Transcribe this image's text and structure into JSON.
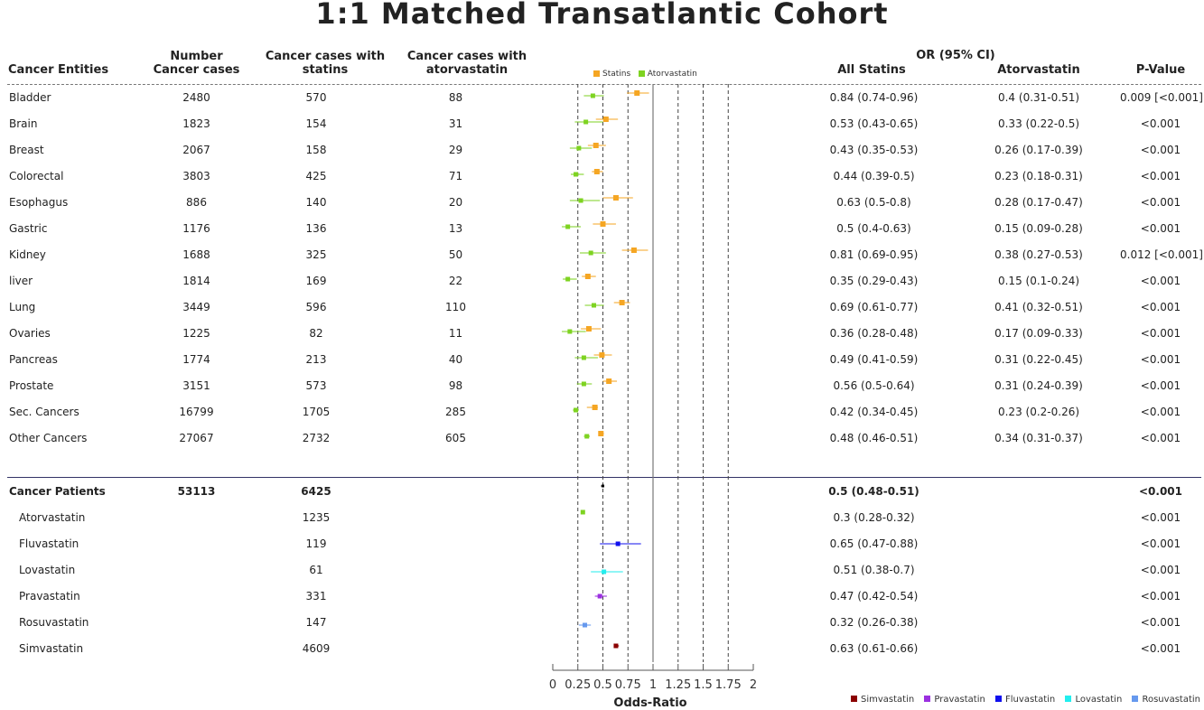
{
  "title": "1:1 Matched Transatlantic Cohort",
  "headers": {
    "entities": "Cancer Entities",
    "number_l1": "Number",
    "number_l2": "Cancer cases",
    "statins_l1": "Cancer cases with",
    "statins_l2": "statins",
    "atorva_l1": "Cancer cases with",
    "atorva_l2": "atorvastatin",
    "or_group": "OR (95% CI)",
    "all_statins": "All Statins",
    "atorvastatin": "Atorvastatin",
    "pvalue": "P-Value"
  },
  "legend_top": [
    "Statins",
    "Atorvastatin"
  ],
  "legend_bottom": [
    "Simvastatin",
    "Pravastatin",
    "Fluvastatin",
    "Lovastatin",
    "Rosuvastatin"
  ],
  "colors": {
    "statins": "#f5a623",
    "atorvastatin": "#7ed321",
    "simvastatin": "#8b0000",
    "pravastatin": "#9b30e0",
    "fluvastatin": "#1010ee",
    "lovastatin": "#22eeee",
    "rosuvastatin": "#6699ee"
  },
  "rows": [
    {
      "name": "Bladder",
      "number": "2480",
      "statins": "570",
      "atorva": "88",
      "or_all": "0.84 (0.74-0.96)",
      "or_ator": "0.4 (0.31-0.51)",
      "p": "0.009 [<0.001]"
    },
    {
      "name": "Brain",
      "number": "1823",
      "statins": "154",
      "atorva": "31",
      "or_all": "0.53 (0.43-0.65)",
      "or_ator": "0.33 (0.22-0.5)",
      "p": "<0.001"
    },
    {
      "name": "Breast",
      "number": "2067",
      "statins": "158",
      "atorva": "29",
      "or_all": "0.43 (0.35-0.53)",
      "or_ator": "0.26 (0.17-0.39)",
      "p": "<0.001"
    },
    {
      "name": "Colorectal",
      "number": "3803",
      "statins": "425",
      "atorva": "71",
      "or_all": "0.44 (0.39-0.5)",
      "or_ator": "0.23 (0.18-0.31)",
      "p": "<0.001"
    },
    {
      "name": "Esophagus",
      "number": "886",
      "statins": "140",
      "atorva": "20",
      "or_all": "0.63 (0.5-0.8)",
      "or_ator": "0.28 (0.17-0.47)",
      "p": "<0.001"
    },
    {
      "name": "Gastric",
      "number": "1176",
      "statins": "136",
      "atorva": "13",
      "or_all": "0.5 (0.4-0.63)",
      "or_ator": "0.15 (0.09-0.28)",
      "p": "<0.001"
    },
    {
      "name": "Kidney",
      "number": "1688",
      "statins": "325",
      "atorva": "50",
      "or_all": "0.81 (0.69-0.95)",
      "or_ator": "0.38 (0.27-0.53)",
      "p": "0.012 [<0.001]"
    },
    {
      "name": "liver",
      "number": "1814",
      "statins": "169",
      "atorva": "22",
      "or_all": "0.35 (0.29-0.43)",
      "or_ator": "0.15 (0.1-0.24)",
      "p": "<0.001"
    },
    {
      "name": "Lung",
      "number": "3449",
      "statins": "596",
      "atorva": "110",
      "or_all": "0.69 (0.61-0.77)",
      "or_ator": "0.41 (0.32-0.51)",
      "p": "<0.001"
    },
    {
      "name": "Ovaries",
      "number": "1225",
      "statins": "82",
      "atorva": "11",
      "or_all": "0.36 (0.28-0.48)",
      "or_ator": "0.17 (0.09-0.33)",
      "p": "<0.001"
    },
    {
      "name": "Pancreas",
      "number": "1774",
      "statins": "213",
      "atorva": "40",
      "or_all": "0.49 (0.41-0.59)",
      "or_ator": "0.31 (0.22-0.45)",
      "p": "<0.001"
    },
    {
      "name": "Prostate",
      "number": "3151",
      "statins": "573",
      "atorva": "98",
      "or_all": "0.56 (0.5-0.64)",
      "or_ator": "0.31 (0.24-0.39)",
      "p": "<0.001"
    },
    {
      "name": "Sec. Cancers",
      "number": "16799",
      "statins": "1705",
      "atorva": "285",
      "or_all": "0.42 (0.34-0.45)",
      "or_ator": "0.23 (0.2-0.26)",
      "p": "<0.001"
    },
    {
      "name": "Other Cancers",
      "number": "27067",
      "statins": "2732",
      "atorva": "605",
      "or_all": "0.48 (0.46-0.51)",
      "or_ator": "0.34 (0.31-0.37)",
      "p": "<0.001"
    }
  ],
  "summary": {
    "name": "Cancer Patients",
    "number": "53113",
    "statins": "6425",
    "or_all": "0.5 (0.48-0.51)",
    "p": "<0.001"
  },
  "subrows": [
    {
      "name": "Atorvastatin",
      "statins": "1235",
      "or_all": "0.3 (0.28-0.32)",
      "p": "<0.001"
    },
    {
      "name": "Fluvastatin",
      "statins": "119",
      "or_all": "0.65 (0.47-0.88)",
      "p": "<0.001"
    },
    {
      "name": "Lovastatin",
      "statins": "61",
      "or_all": "0.51 (0.38-0.7)",
      "p": "<0.001"
    },
    {
      "name": "Pravastatin",
      "statins": "331",
      "or_all": "0.47 (0.42-0.54)",
      "p": "<0.001"
    },
    {
      "name": "Rosuvastatin",
      "statins": "147",
      "or_all": "0.32 (0.26-0.38)",
      "p": "<0.001"
    },
    {
      "name": "Simvastatin",
      "statins": "4609",
      "or_all": "0.63 (0.61-0.66)",
      "p": "<0.001"
    }
  ],
  "chart_data": {
    "type": "scatter",
    "subtype": "forest-plot",
    "xlabel": "Odds-Ratio",
    "xlim": [
      0,
      2
    ],
    "xticks": [
      "0",
      "0.25",
      "0.5",
      "0.75",
      "1",
      "1.25",
      "1.5",
      "1.75",
      "2"
    ],
    "reference_line": 1,
    "grid": "dashed vertical lines at 0.25, 0.5, 0.75, 1.25, 1.5, 1.75",
    "series": [
      {
        "name": "Statins",
        "color": "#f5a623",
        "points": [
          {
            "label": "Bladder",
            "or": 0.84,
            "lo": 0.74,
            "hi": 0.96
          },
          {
            "label": "Brain",
            "or": 0.53,
            "lo": 0.43,
            "hi": 0.65
          },
          {
            "label": "Breast",
            "or": 0.43,
            "lo": 0.35,
            "hi": 0.53
          },
          {
            "label": "Colorectal",
            "or": 0.44,
            "lo": 0.39,
            "hi": 0.5
          },
          {
            "label": "Esophagus",
            "or": 0.63,
            "lo": 0.5,
            "hi": 0.8
          },
          {
            "label": "Gastric",
            "or": 0.5,
            "lo": 0.4,
            "hi": 0.63
          },
          {
            "label": "Kidney",
            "or": 0.81,
            "lo": 0.69,
            "hi": 0.95
          },
          {
            "label": "liver",
            "or": 0.35,
            "lo": 0.29,
            "hi": 0.43
          },
          {
            "label": "Lung",
            "or": 0.69,
            "lo": 0.61,
            "hi": 0.77
          },
          {
            "label": "Ovaries",
            "or": 0.36,
            "lo": 0.28,
            "hi": 0.48
          },
          {
            "label": "Pancreas",
            "or": 0.49,
            "lo": 0.41,
            "hi": 0.59
          },
          {
            "label": "Prostate",
            "or": 0.56,
            "lo": 0.5,
            "hi": 0.64
          },
          {
            "label": "Sec. Cancers",
            "or": 0.42,
            "lo": 0.34,
            "hi": 0.45
          },
          {
            "label": "Other Cancers",
            "or": 0.48,
            "lo": 0.46,
            "hi": 0.51
          }
        ]
      },
      {
        "name": "Atorvastatin",
        "color": "#7ed321",
        "points": [
          {
            "label": "Bladder",
            "or": 0.4,
            "lo": 0.31,
            "hi": 0.51
          },
          {
            "label": "Brain",
            "or": 0.33,
            "lo": 0.22,
            "hi": 0.5
          },
          {
            "label": "Breast",
            "or": 0.26,
            "lo": 0.17,
            "hi": 0.39
          },
          {
            "label": "Colorectal",
            "or": 0.23,
            "lo": 0.18,
            "hi": 0.31
          },
          {
            "label": "Esophagus",
            "or": 0.28,
            "lo": 0.17,
            "hi": 0.47
          },
          {
            "label": "Gastric",
            "or": 0.15,
            "lo": 0.09,
            "hi": 0.28
          },
          {
            "label": "Kidney",
            "or": 0.38,
            "lo": 0.27,
            "hi": 0.53
          },
          {
            "label": "liver",
            "or": 0.15,
            "lo": 0.1,
            "hi": 0.24
          },
          {
            "label": "Lung",
            "or": 0.41,
            "lo": 0.32,
            "hi": 0.51
          },
          {
            "label": "Ovaries",
            "or": 0.17,
            "lo": 0.09,
            "hi": 0.33
          },
          {
            "label": "Pancreas",
            "or": 0.31,
            "lo": 0.22,
            "hi": 0.45
          },
          {
            "label": "Prostate",
            "or": 0.31,
            "lo": 0.24,
            "hi": 0.39
          },
          {
            "label": "Sec. Cancers",
            "or": 0.23,
            "lo": 0.2,
            "hi": 0.26
          },
          {
            "label": "Other Cancers",
            "or": 0.34,
            "lo": 0.31,
            "hi": 0.37
          }
        ]
      },
      {
        "name": "Cancer Patients",
        "color": "#000000",
        "points": [
          {
            "label": "Cancer Patients",
            "or": 0.5,
            "lo": 0.48,
            "hi": 0.51
          }
        ]
      },
      {
        "name": "Atorvastatin",
        "color": "#7ed321",
        "points": [
          {
            "label": "Atorvastatin",
            "or": 0.3,
            "lo": 0.28,
            "hi": 0.32
          }
        ]
      },
      {
        "name": "Fluvastatin",
        "color": "#1010ee",
        "points": [
          {
            "label": "Fluvastatin",
            "or": 0.65,
            "lo": 0.47,
            "hi": 0.88
          }
        ]
      },
      {
        "name": "Lovastatin",
        "color": "#22eeee",
        "points": [
          {
            "label": "Lovastatin",
            "or": 0.51,
            "lo": 0.38,
            "hi": 0.7
          }
        ]
      },
      {
        "name": "Pravastatin",
        "color": "#9b30e0",
        "points": [
          {
            "label": "Pravastatin",
            "or": 0.47,
            "lo": 0.42,
            "hi": 0.54
          }
        ]
      },
      {
        "name": "Rosuvastatin",
        "color": "#6699ee",
        "points": [
          {
            "label": "Rosuvastatin",
            "or": 0.32,
            "lo": 0.26,
            "hi": 0.38
          }
        ]
      },
      {
        "name": "Simvastatin",
        "color": "#8b0000",
        "points": [
          {
            "label": "Simvastatin",
            "or": 0.63,
            "lo": 0.61,
            "hi": 0.66
          }
        ]
      }
    ]
  }
}
